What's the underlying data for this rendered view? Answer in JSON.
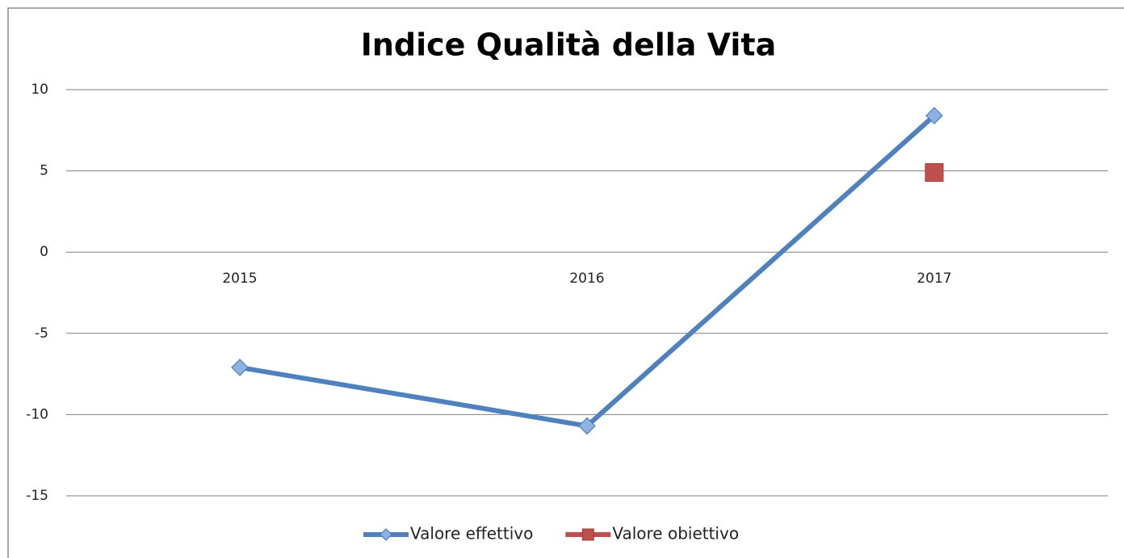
{
  "chart_data": {
    "type": "line",
    "title": "Indice Qualità della Vita",
    "categories": [
      "2015",
      "2016",
      "2017"
    ],
    "series": [
      {
        "name": "Valore effettivo",
        "color": "#4f81bd",
        "marker": "diamond",
        "values": [
          -7.1,
          -10.7,
          8.4
        ]
      },
      {
        "name": "Valore obiettivo",
        "color": "#c0504d",
        "marker": "square",
        "values": [
          null,
          null,
          4.9
        ]
      }
    ],
    "ylim": [
      -15,
      10
    ],
    "yticks": [
      -15,
      -10,
      -5,
      0,
      5,
      10
    ],
    "grid": true,
    "legend": "bottom"
  }
}
